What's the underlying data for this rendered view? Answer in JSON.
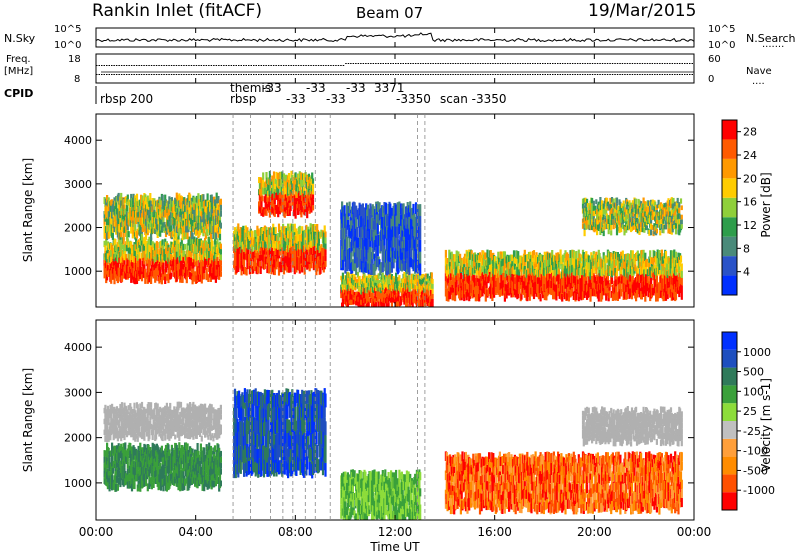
{
  "header": {
    "station": "Rankin Inlet (fitACF)",
    "beam": "Beam 07",
    "date": "19/Mar/2015"
  },
  "noise_panel": {
    "left_label": "N.Sky",
    "right_label": "N.Search",
    "left_ticks": [
      "10^5",
      "10^0"
    ],
    "right_ticks": [
      "10^5",
      "10^0"
    ]
  },
  "freq_panel": {
    "left_label_1": "Freq.",
    "left_label_2": "[MHz]",
    "left_ticks": [
      "18",
      "8"
    ],
    "right_label": "Nave",
    "right_ticks": [
      "60",
      "0"
    ]
  },
  "cpid": {
    "label": "CPID",
    "entries": [
      "rbsp 200",
      "rbsp",
      "themis",
      "-3350",
      "scan -3350",
      "3371"
    ]
  },
  "colors": {
    "power": [
      "#0030ff",
      "#2a53c8",
      "#4a8a7a",
      "#2e9d4b",
      "#8fcf3a",
      "#ffcc00",
      "#ff9900",
      "#ff5a00",
      "#ff0000"
    ],
    "velocity": [
      "#ff0000",
      "#ff5000",
      "#ff8c00",
      "#ff9f3a",
      "#c0c0c0",
      "#8ddc3a",
      "#3aa03a",
      "#2f7a5a",
      "#1e4fbf",
      "#0030ff"
    ],
    "ground_scatter": "#b0b0b0"
  },
  "chart_data": [
    {
      "type": "heatmap",
      "title": "",
      "xlabel": "Time UT",
      "ylabel": "Slant Range [km]",
      "x_ticks": [
        "00:00",
        "04:00",
        "08:00",
        "12:00",
        "16:00",
        "20:00",
        "00:00"
      ],
      "xlim_hours": [
        0,
        24
      ],
      "ylim_km": [
        180,
        4600
      ],
      "y_ticks": [
        1000,
        2000,
        3000,
        4000
      ],
      "colorbar": {
        "label": "Power [dB]",
        "ticks": [
          4,
          8,
          12,
          16,
          20,
          24,
          28
        ],
        "range": [
          0,
          30
        ]
      },
      "echo_regions": [
        {
          "t0": 0.3,
          "t1": 5.0,
          "r0": 800,
          "r1": 1700,
          "value": "high"
        },
        {
          "t0": 0.3,
          "t1": 5.0,
          "r0": 1800,
          "r1": 2700,
          "value": "mixed"
        },
        {
          "t0": 5.5,
          "t1": 9.2,
          "r0": 1000,
          "r1": 2000,
          "value": "high"
        },
        {
          "t0": 6.5,
          "t1": 8.7,
          "r0": 2300,
          "r1": 3200,
          "value": "high"
        },
        {
          "t0": 9.8,
          "t1": 13.5,
          "r0": 200,
          "r1": 900,
          "value": "high"
        },
        {
          "t0": 9.8,
          "t1": 13.0,
          "r0": 1000,
          "r1": 2500,
          "value": "low"
        },
        {
          "t0": 14.0,
          "t1": 23.5,
          "r0": 400,
          "r1": 1400,
          "value": "high"
        },
        {
          "t0": 19.5,
          "t1": 23.5,
          "r0": 1900,
          "r1": 2600,
          "value": "mixed"
        }
      ]
    },
    {
      "type": "heatmap",
      "title": "",
      "xlabel": "Time UT",
      "ylabel": "Slant Range [km]",
      "x_ticks": [
        "00:00",
        "04:00",
        "08:00",
        "12:00",
        "16:00",
        "20:00",
        "00:00"
      ],
      "xlim_hours": [
        0,
        24
      ],
      "ylim_km": [
        180,
        4600
      ],
      "y_ticks": [
        1000,
        2000,
        3000,
        4000
      ],
      "colorbar": {
        "label": "Velocity [m s-1]",
        "ticks": [
          "1000",
          "500",
          "100",
          "25",
          "-25",
          "-100",
          "-500",
          "-1000"
        ],
        "range": [
          -1000,
          1000
        ]
      },
      "echo_regions": [
        {
          "t0": 0.3,
          "t1": 5.0,
          "r0": 900,
          "r1": 1800,
          "value": "positive-mid"
        },
        {
          "t0": 0.3,
          "t1": 5.0,
          "r0": 2000,
          "r1": 2700,
          "value": "ground"
        },
        {
          "t0": 5.5,
          "t1": 9.2,
          "r0": 1200,
          "r1": 3000,
          "value": "positive-high"
        },
        {
          "t0": 9.8,
          "t1": 13.0,
          "r0": 200,
          "r1": 1200,
          "value": "positive-low"
        },
        {
          "t0": 14.0,
          "t1": 23.5,
          "r0": 400,
          "r1": 1600,
          "value": "negative"
        },
        {
          "t0": 19.5,
          "t1": 23.5,
          "r0": 1900,
          "r1": 2600,
          "value": "ground"
        }
      ]
    }
  ]
}
